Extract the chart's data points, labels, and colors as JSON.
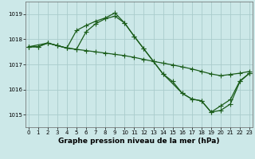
{
  "xlabel": "Graphe pression niveau de la mer (hPa)",
  "bg_color": "#cce8e8",
  "grid_color": "#aacccc",
  "line_color": "#1a5c1a",
  "ylim": [
    1014.5,
    1019.5
  ],
  "xlim": [
    -0.3,
    23.3
  ],
  "yticks": [
    1015,
    1016,
    1017,
    1018,
    1019
  ],
  "xticks": [
    0,
    1,
    2,
    3,
    4,
    5,
    6,
    7,
    8,
    9,
    10,
    11,
    12,
    13,
    14,
    15,
    16,
    17,
    18,
    19,
    20,
    21,
    22,
    23
  ],
  "series1_x": [
    0,
    1,
    2,
    3,
    4,
    5,
    6,
    7,
    8,
    9,
    10,
    11,
    12,
    13,
    14,
    15,
    16,
    17,
    18,
    19,
    20,
    21,
    22,
    23
  ],
  "series1_y": [
    1017.7,
    1017.7,
    1017.85,
    1017.75,
    1017.65,
    1017.6,
    1017.55,
    1017.5,
    1017.45,
    1017.4,
    1017.35,
    1017.28,
    1017.2,
    1017.12,
    1017.05,
    1016.98,
    1016.9,
    1016.82,
    1016.72,
    1016.62,
    1016.55,
    1016.6,
    1016.65,
    1016.72
  ],
  "series2_x": [
    0,
    1,
    2,
    3,
    4,
    5,
    6,
    7,
    8,
    9,
    10,
    11,
    12,
    13,
    14,
    15,
    16,
    17,
    18,
    19,
    20,
    21,
    22,
    23
  ],
  "series2_y": [
    1017.7,
    1017.7,
    1017.85,
    1017.75,
    1017.65,
    1018.35,
    1018.55,
    1018.72,
    1018.85,
    1019.05,
    1018.65,
    1018.12,
    1017.62,
    1017.12,
    1016.62,
    1016.32,
    1015.85,
    1015.62,
    1015.55,
    1015.1,
    1015.17,
    1015.42,
    1016.32,
    1016.65
  ],
  "series3_x": [
    0,
    2,
    3,
    4,
    5,
    6,
    7,
    8,
    9,
    10,
    11,
    12,
    14,
    16,
    17,
    18,
    19,
    20,
    21,
    22,
    23
  ],
  "series3_y": [
    1017.7,
    1017.85,
    1017.75,
    1017.65,
    1017.6,
    1018.3,
    1018.62,
    1018.82,
    1018.92,
    1018.65,
    1018.12,
    1017.62,
    1016.62,
    1015.85,
    1015.62,
    1015.55,
    1015.1,
    1015.35,
    1015.6,
    1016.35,
    1016.65
  ],
  "marker": "+",
  "markersize": 4,
  "linewidth": 0.9,
  "tick_fontsize": 5,
  "xlabel_fontsize": 6.5,
  "xlabel_fontweight": "bold"
}
